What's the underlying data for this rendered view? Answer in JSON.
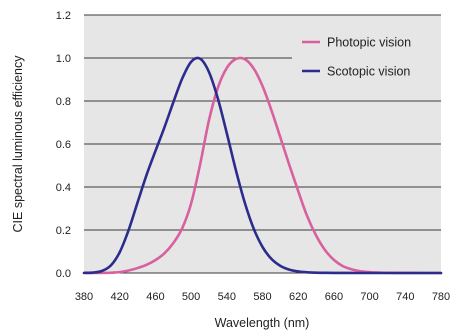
{
  "chart_data": {
    "type": "line",
    "xlabel": "Wavelength (nm)",
    "ylabel": "CIE spectral luminous efficiency",
    "xlim": [
      380,
      780
    ],
    "ylim": [
      0,
      1.2
    ],
    "x_ticks": [
      380,
      420,
      460,
      500,
      540,
      580,
      620,
      660,
      700,
      740,
      780
    ],
    "y_ticks": [
      "0.0",
      "0.2",
      "0.4",
      "0.6",
      "0.8",
      "1.0",
      "1.2"
    ],
    "grid": "horizontal",
    "legend_position": "top-right",
    "background": "#e6e6e6",
    "x": [
      380,
      390,
      400,
      410,
      420,
      430,
      440,
      450,
      460,
      470,
      480,
      490,
      500,
      510,
      520,
      530,
      540,
      550,
      560,
      570,
      580,
      590,
      600,
      610,
      620,
      630,
      640,
      650,
      660,
      670,
      680,
      690,
      700,
      710,
      720,
      730,
      740,
      750,
      760,
      770,
      780
    ],
    "series": [
      {
        "name": "Photopic vision",
        "color": "#d9609e",
        "values": [
          0.0,
          0.0001,
          0.0004,
          0.0012,
          0.004,
          0.0116,
          0.023,
          0.038,
          0.06,
          0.091,
          0.139,
          0.208,
          0.323,
          0.503,
          0.71,
          0.862,
          0.954,
          0.995,
          0.995,
          0.952,
          0.87,
          0.757,
          0.631,
          0.503,
          0.381,
          0.265,
          0.175,
          0.107,
          0.061,
          0.032,
          0.017,
          0.0082,
          0.0041,
          0.0021,
          0.001,
          0.0005,
          0.0002,
          0.0001,
          0.0,
          0.0,
          0.0
        ]
      },
      {
        "name": "Scotopic vision",
        "color": "#2b2c8c",
        "values": [
          0.0006,
          0.0022,
          0.0093,
          0.0348,
          0.0966,
          0.1998,
          0.3281,
          0.455,
          0.567,
          0.676,
          0.793,
          0.904,
          0.982,
          0.997,
          0.935,
          0.811,
          0.65,
          0.481,
          0.3288,
          0.2076,
          0.1212,
          0.0655,
          0.0332,
          0.0159,
          0.0074,
          0.0033,
          0.0015,
          0.0007,
          0.0003,
          0.0001,
          0.0001,
          0.0,
          0.0,
          0.0,
          0.0,
          0.0,
          0.0,
          0.0,
          0.0,
          0.0,
          0.0
        ]
      }
    ]
  }
}
